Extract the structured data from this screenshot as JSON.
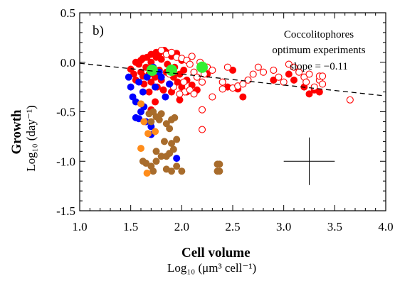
{
  "chart_data": {
    "type": "scatter",
    "panel_label": "b)",
    "xlabel": "Cell volume",
    "xunit": "Log₁₀ (μm³ cell⁻¹)",
    "ylabel": "Growth",
    "yunit": "Log₁₀ (day⁻¹)",
    "xlim": [
      1.0,
      4.0
    ],
    "ylim": [
      -1.5,
      0.5
    ],
    "xticks": [
      "1.0",
      "1.5",
      "2.0",
      "2.5",
      "3.0",
      "3.5",
      "4.0"
    ],
    "yticks": [
      "0.5",
      "0.0",
      "-0.5",
      "-1.0",
      "-1.5"
    ],
    "xtick_values": [
      1.0,
      1.5,
      2.0,
      2.5,
      3.0,
      3.5,
      4.0
    ],
    "ytick_values": [
      0.5,
      0.0,
      -0.5,
      -1.0,
      -1.5
    ],
    "annotation": [
      "Coccolitophores",
      "optimum experiments",
      "slope = −0.11"
    ],
    "fit_line": {
      "style": "dashed",
      "color": "#000000",
      "points": [
        [
          1.0,
          -0.01
        ],
        [
          4.0,
          -0.34
        ]
      ]
    },
    "error_cross": {
      "x": 3.25,
      "y": -1.0,
      "x_half": 0.25,
      "y_half": 0.24
    },
    "series": [
      {
        "color": "#ff0000",
        "marker": "filled",
        "points": [
          [
            1.5,
            -0.07
          ],
          [
            1.53,
            -0.12
          ],
          [
            1.55,
            -0.18
          ],
          [
            1.58,
            -0.02
          ],
          [
            1.6,
            -0.1
          ],
          [
            1.6,
            0.02
          ],
          [
            1.62,
            -0.14
          ],
          [
            1.63,
            -0.22
          ],
          [
            1.65,
            -0.05
          ],
          [
            1.66,
            0.05
          ],
          [
            1.68,
            -0.12
          ],
          [
            1.7,
            -0.2
          ],
          [
            1.7,
            0.08
          ],
          [
            1.72,
            -0.05
          ],
          [
            1.74,
            -0.15
          ],
          [
            1.75,
            0.1
          ],
          [
            1.76,
            -0.25
          ],
          [
            1.78,
            -0.08
          ],
          [
            1.8,
            0.03
          ],
          [
            1.8,
            -0.18
          ],
          [
            1.82,
            -0.28
          ],
          [
            1.83,
            0.12
          ],
          [
            1.85,
            -0.1
          ],
          [
            1.86,
            -0.02
          ],
          [
            1.88,
            -0.22
          ],
          [
            1.9,
            0.06
          ],
          [
            1.9,
            -0.3
          ],
          [
            1.92,
            -0.15
          ],
          [
            1.93,
            -0.05
          ],
          [
            1.95,
            0.09
          ],
          [
            1.96,
            -0.2
          ],
          [
            1.98,
            -0.12
          ],
          [
            2.0,
            -0.25
          ],
          [
            2.0,
            0.02
          ],
          [
            2.02,
            -0.08
          ],
          [
            2.05,
            -0.18
          ],
          [
            2.05,
            -0.3
          ],
          [
            1.75,
            0.05
          ],
          [
            1.7,
            0.0
          ],
          [
            1.62,
            0.04
          ],
          [
            1.55,
            0.0
          ],
          [
            1.85,
            0.1
          ],
          [
            1.78,
            0.09
          ],
          [
            2.1,
            -0.23
          ],
          [
            2.15,
            -0.28
          ],
          [
            2.2,
            -0.05
          ],
          [
            2.25,
            -0.12
          ],
          [
            2.45,
            -0.25
          ],
          [
            2.5,
            -0.08
          ],
          [
            2.55,
            -0.27
          ],
          [
            2.6,
            -0.35
          ],
          [
            2.9,
            -0.18
          ],
          [
            3.05,
            -0.12
          ],
          [
            3.1,
            -0.18
          ],
          [
            3.2,
            -0.25
          ],
          [
            3.25,
            -0.32
          ],
          [
            3.3,
            -0.28
          ],
          [
            3.35,
            -0.3
          ],
          [
            1.68,
            -0.3
          ],
          [
            1.74,
            -0.4
          ],
          [
            1.7,
            -0.48
          ],
          [
            1.98,
            -0.38
          ]
        ]
      },
      {
        "color": "#ff0000",
        "marker": "open",
        "points": [
          [
            1.8,
            0.12
          ],
          [
            1.85,
            0.08
          ],
          [
            1.9,
            0.1
          ],
          [
            1.95,
            0.05
          ],
          [
            2.0,
            0.04
          ],
          [
            2.05,
            0.02
          ],
          [
            2.08,
            -0.02
          ],
          [
            2.1,
            0.06
          ],
          [
            2.12,
            -0.1
          ],
          [
            2.15,
            -0.15
          ],
          [
            2.18,
            0.0
          ],
          [
            2.2,
            -0.2
          ],
          [
            2.22,
            -0.12
          ],
          [
            2.25,
            -0.05
          ],
          [
            2.3,
            -0.08
          ],
          [
            1.88,
            -0.12
          ],
          [
            1.92,
            -0.25
          ],
          [
            2.02,
            -0.2
          ],
          [
            2.03,
            -0.3
          ],
          [
            2.08,
            -0.28
          ],
          [
            1.98,
            -0.32
          ],
          [
            2.12,
            -0.32
          ],
          [
            2.2,
            -0.48
          ],
          [
            2.3,
            -0.35
          ],
          [
            2.4,
            -0.2
          ],
          [
            2.45,
            -0.05
          ],
          [
            2.5,
            -0.26
          ],
          [
            2.55,
            -0.24
          ],
          [
            2.6,
            -0.22
          ],
          [
            2.65,
            -0.18
          ],
          [
            2.7,
            -0.12
          ],
          [
            2.75,
            -0.05
          ],
          [
            2.8,
            -0.1
          ],
          [
            2.9,
            -0.08
          ],
          [
            2.95,
            -0.15
          ],
          [
            3.0,
            -0.2
          ],
          [
            3.05,
            -0.02
          ],
          [
            3.1,
            -0.05
          ],
          [
            3.15,
            -0.1
          ],
          [
            3.2,
            -0.15
          ],
          [
            3.22,
            -0.2
          ],
          [
            3.25,
            -0.12
          ],
          [
            3.3,
            -0.25
          ],
          [
            3.35,
            -0.18
          ],
          [
            3.38,
            -0.22
          ],
          [
            3.35,
            -0.14
          ],
          [
            3.38,
            -0.14
          ],
          [
            3.65,
            -0.38
          ],
          [
            2.2,
            -0.68
          ],
          [
            2.4,
            -0.27
          ]
        ]
      },
      {
        "color": "#0000ff",
        "marker": "filled",
        "points": [
          [
            1.48,
            -0.15
          ],
          [
            1.5,
            -0.25
          ],
          [
            1.52,
            -0.35
          ],
          [
            1.55,
            -0.4
          ],
          [
            1.55,
            -0.56
          ],
          [
            1.58,
            -0.2
          ],
          [
            1.58,
            -0.57
          ],
          [
            1.6,
            -0.5
          ],
          [
            1.62,
            -0.3
          ],
          [
            1.63,
            -0.45
          ],
          [
            1.65,
            -0.6
          ],
          [
            1.7,
            -0.65
          ],
          [
            1.7,
            -0.73
          ],
          [
            1.66,
            -0.15
          ],
          [
            1.72,
            -0.05
          ],
          [
            1.74,
            -0.25
          ],
          [
            1.78,
            -0.1
          ],
          [
            1.8,
            -0.15
          ],
          [
            1.84,
            -0.35
          ],
          [
            1.88,
            -0.22
          ],
          [
            1.95,
            -0.97
          ]
        ]
      },
      {
        "color": "#a86c2c",
        "marker": "filled",
        "points": [
          [
            1.68,
            -0.52
          ],
          [
            1.72,
            -0.5
          ],
          [
            1.75,
            -0.55
          ],
          [
            1.78,
            -0.58
          ],
          [
            1.8,
            -0.52
          ],
          [
            1.7,
            -0.6
          ],
          [
            1.85,
            -0.62
          ],
          [
            1.9,
            -0.58
          ],
          [
            1.88,
            -0.67
          ],
          [
            1.93,
            -0.56
          ],
          [
            1.83,
            -0.8
          ],
          [
            1.9,
            -0.82
          ],
          [
            1.95,
            -0.78
          ],
          [
            1.75,
            -0.9
          ],
          [
            1.8,
            -0.95
          ],
          [
            1.85,
            -0.95
          ],
          [
            1.88,
            -0.92
          ],
          [
            1.92,
            -0.88
          ],
          [
            1.62,
            -1.0
          ],
          [
            1.65,
            -1.02
          ],
          [
            1.7,
            -1.05
          ],
          [
            1.75,
            -1.0
          ],
          [
            1.85,
            -1.08
          ],
          [
            1.9,
            -1.1
          ],
          [
            1.95,
            -1.05
          ],
          [
            2.0,
            -1.1
          ],
          [
            2.35,
            -1.03
          ],
          [
            2.37,
            -1.03
          ],
          [
            2.35,
            -1.1
          ],
          [
            2.37,
            -1.1
          ],
          [
            1.72,
            -1.1
          ]
        ]
      },
      {
        "color": "#ff8c1a",
        "marker": "filled",
        "points": [
          [
            1.6,
            -0.42
          ],
          [
            1.63,
            -0.6
          ],
          [
            1.67,
            -0.72
          ],
          [
            1.74,
            -0.7
          ],
          [
            1.6,
            -0.87
          ],
          [
            1.66,
            -1.12
          ]
        ]
      },
      {
        "color": "#33ee33",
        "marker": "filled-large",
        "points": [
          [
            1.71,
            -0.08
          ],
          [
            1.9,
            -0.08
          ],
          [
            2.2,
            -0.05
          ]
        ]
      }
    ]
  }
}
